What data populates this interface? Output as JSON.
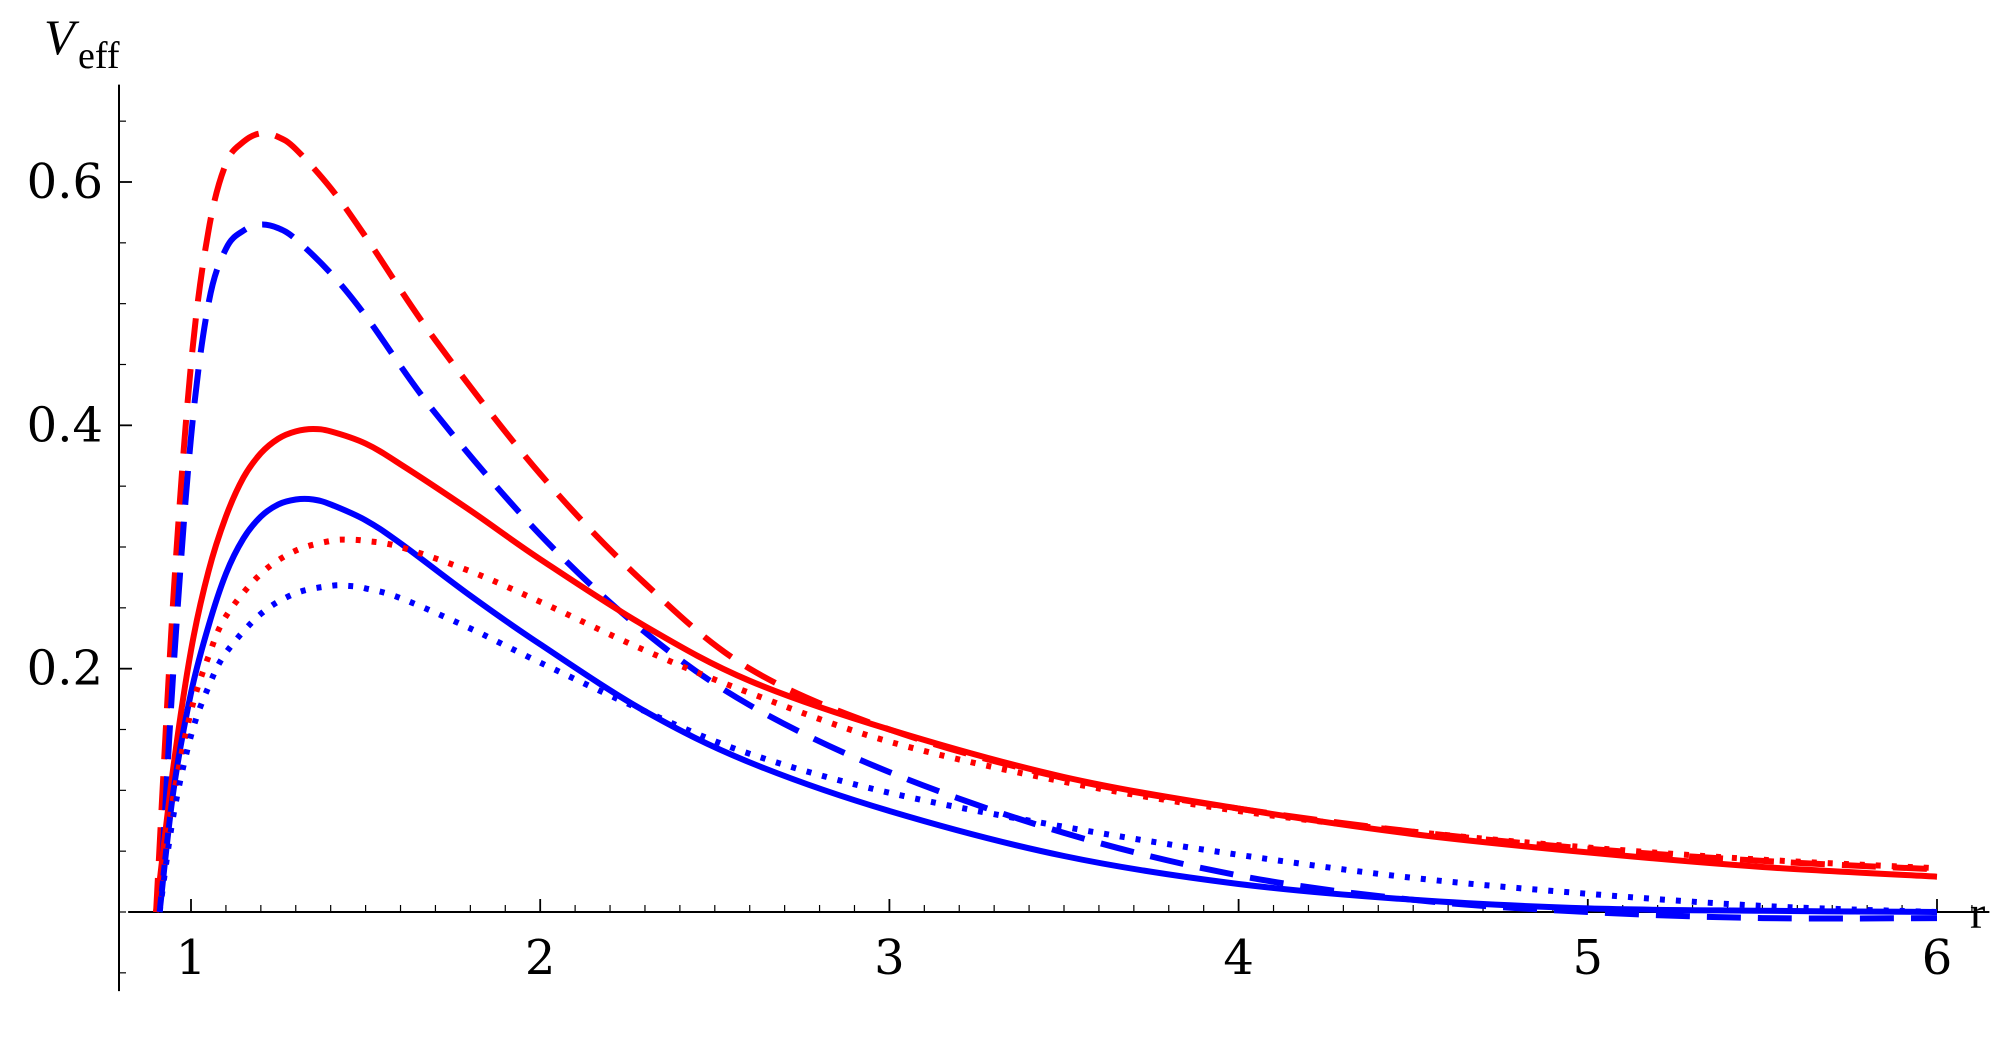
{
  "chart_data": {
    "type": "line",
    "xlabel": "r",
    "ylabel": {
      "main": "V",
      "sub": "eff"
    },
    "xlim": [
      0.82,
      6.15
    ],
    "ylim": [
      -0.065,
      0.68
    ],
    "xticks": [
      1,
      2,
      3,
      4,
      5,
      6
    ],
    "xtick_labels": [
      "1",
      "2",
      "3",
      "4",
      "5",
      "6"
    ],
    "yticks": [
      0.2,
      0.4,
      0.6
    ],
    "ytick_labels": [
      "0.2",
      "0.4",
      "0.6"
    ],
    "grid": false,
    "legend": false,
    "series": [
      {
        "color": "#ff0000",
        "style": "dashed",
        "x": [
          0.9,
          0.95,
          1.0,
          1.05,
          1.1,
          1.15,
          1.2,
          1.25,
          1.3,
          1.4,
          1.5,
          1.7,
          2.0,
          2.3,
          2.6,
          3.0,
          3.5,
          4.0,
          4.5,
          5.0,
          5.5,
          6.0
        ],
        "y": [
          0.0,
          0.26,
          0.45,
          0.56,
          0.615,
          0.633,
          0.64,
          0.637,
          0.627,
          0.595,
          0.555,
          0.47,
          0.36,
          0.27,
          0.2,
          0.15,
          0.11,
          0.085,
          0.066,
          0.052,
          0.042,
          0.035
        ]
      },
      {
        "color": "#0000ff",
        "style": "dashed",
        "x": [
          0.91,
          0.95,
          1.0,
          1.05,
          1.1,
          1.15,
          1.2,
          1.25,
          1.3,
          1.4,
          1.5,
          1.7,
          2.0,
          2.3,
          2.6,
          3.0,
          3.5,
          4.0,
          4.5,
          5.0,
          5.5,
          6.0
        ],
        "y": [
          0.0,
          0.2,
          0.39,
          0.5,
          0.545,
          0.56,
          0.565,
          0.562,
          0.553,
          0.525,
          0.49,
          0.41,
          0.31,
          0.23,
          0.17,
          0.115,
          0.065,
          0.03,
          0.01,
          0.0,
          -0.005,
          -0.005
        ]
      },
      {
        "color": "#ff0000",
        "style": "solid",
        "x": [
          0.9,
          0.95,
          1.0,
          1.05,
          1.1,
          1.15,
          1.2,
          1.25,
          1.3,
          1.35,
          1.4,
          1.5,
          1.6,
          1.8,
          2.0,
          2.3,
          2.6,
          3.0,
          3.5,
          4.0,
          4.5,
          5.0,
          5.5,
          6.0
        ],
        "y": [
          0.0,
          0.12,
          0.215,
          0.28,
          0.325,
          0.357,
          0.377,
          0.389,
          0.395,
          0.397,
          0.395,
          0.385,
          0.368,
          0.33,
          0.29,
          0.235,
          0.19,
          0.15,
          0.111,
          0.085,
          0.064,
          0.049,
          0.037,
          0.029
        ]
      },
      {
        "color": "#0000ff",
        "style": "solid",
        "x": [
          0.91,
          0.95,
          1.0,
          1.05,
          1.1,
          1.15,
          1.2,
          1.25,
          1.3,
          1.35,
          1.4,
          1.5,
          1.6,
          1.8,
          2.0,
          2.3,
          2.6,
          3.0,
          3.5,
          4.0,
          4.5,
          5.0,
          5.5,
          6.0
        ],
        "y": [
          0.0,
          0.1,
          0.18,
          0.235,
          0.278,
          0.307,
          0.325,
          0.335,
          0.339,
          0.339,
          0.335,
          0.322,
          0.303,
          0.26,
          0.22,
          0.165,
          0.123,
          0.083,
          0.046,
          0.023,
          0.01,
          0.003,
          0.001,
          0.0
        ]
      },
      {
        "color": "#ff0000",
        "style": "dotted",
        "x": [
          0.9,
          0.95,
          1.0,
          1.05,
          1.1,
          1.2,
          1.3,
          1.4,
          1.45,
          1.5,
          1.6,
          1.8,
          2.0,
          2.3,
          2.6,
          3.0,
          3.5,
          4.0,
          4.5,
          5.0,
          5.5,
          6.0
        ],
        "y": [
          0.0,
          0.095,
          0.165,
          0.21,
          0.243,
          0.278,
          0.297,
          0.305,
          0.306,
          0.305,
          0.3,
          0.28,
          0.255,
          0.215,
          0.18,
          0.14,
          0.107,
          0.083,
          0.066,
          0.053,
          0.043,
          0.036
        ]
      },
      {
        "color": "#0000ff",
        "style": "dotted",
        "x": [
          0.91,
          0.95,
          1.0,
          1.05,
          1.1,
          1.2,
          1.3,
          1.4,
          1.45,
          1.5,
          1.6,
          1.8,
          2.0,
          2.3,
          2.6,
          3.0,
          3.5,
          4.0,
          4.5,
          5.0,
          5.5,
          6.0
        ],
        "y": [
          0.0,
          0.08,
          0.145,
          0.185,
          0.213,
          0.245,
          0.262,
          0.268,
          0.268,
          0.266,
          0.258,
          0.233,
          0.205,
          0.165,
          0.13,
          0.098,
          0.07,
          0.047,
          0.028,
          0.015,
          0.005,
          0.0
        ]
      }
    ]
  }
}
